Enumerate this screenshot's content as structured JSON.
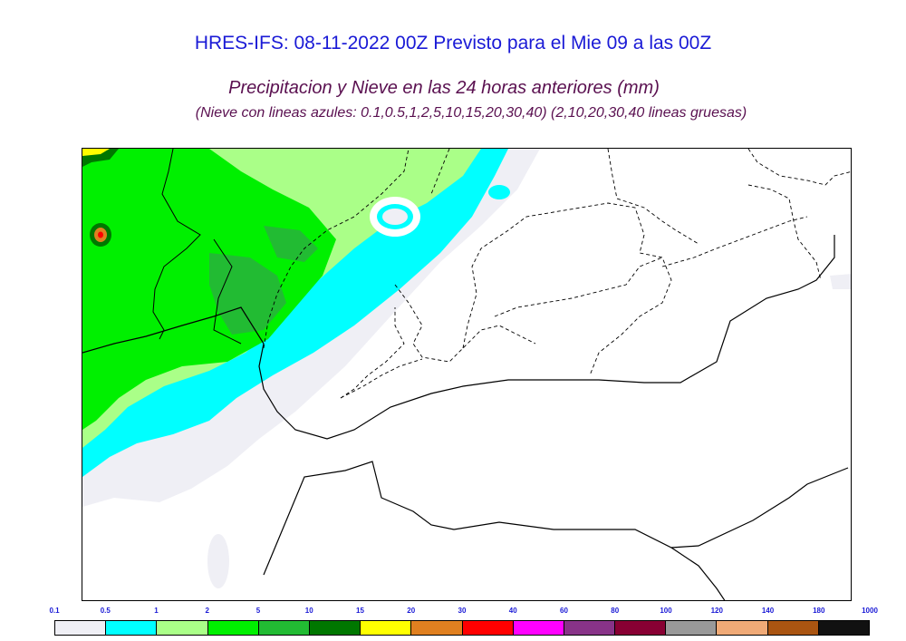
{
  "header": {
    "title": "HRES-IFS: 08-11-2022 00Z Previsto para el Mie 09 a las 00Z",
    "subtitle": "Precipitacion y Nieve en las 24 horas anteriores (mm)",
    "note": "(Nieve con lineas azules: 0.1,0.5,1,2,5,10,15,20,30,40)  (2,10,20,30,40 lineas gruesas)"
  },
  "legend": {
    "labels": [
      "0.1",
      "0.5",
      "1",
      "2",
      "5",
      "10",
      "15",
      "20",
      "30",
      "40",
      "60",
      "80",
      "100",
      "120",
      "140",
      "180",
      "1000"
    ],
    "colors": [
      "#efeff5",
      "#00ffff",
      "#aaff88",
      "#00f000",
      "#22bb33",
      "#007700",
      "#ffff00",
      "#e08020",
      "#ff0000",
      "#ff00ff",
      "#883388",
      "#880033",
      "#999999",
      "#f0aa77",
      "#aa5511",
      "#111111"
    ]
  },
  "map": {
    "colors": {
      "very_light": "#efeff5",
      "cyan": "#00ffff",
      "light_green": "#aaff88",
      "green": "#00f000",
      "dark_green": "#22bb33",
      "darker_green": "#007700",
      "yellow": "#ffff00",
      "orange": "#e08020",
      "red": "#ff0000",
      "boundary": "#000000"
    }
  }
}
